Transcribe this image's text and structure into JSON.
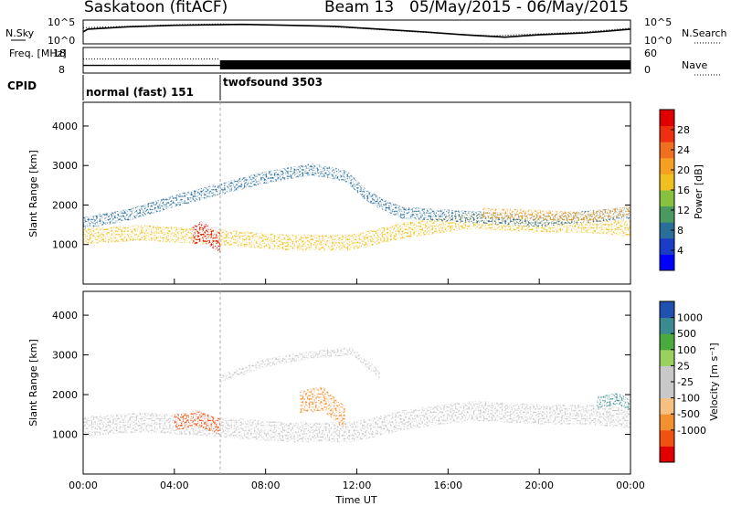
{
  "header": {
    "station": "Saskatoon (fitACF)",
    "beam_label": "Beam 13",
    "date_range": "05/May/2015 - 06/May/2015"
  },
  "colors": {
    "power_scale": [
      "#0000ff",
      "#1a3cc8",
      "#2a6f9a",
      "#4a9a60",
      "#88c040",
      "#f0c020",
      "#f5a020",
      "#f07020",
      "#ee3010",
      "#e00000"
    ],
    "velocity_scale": [
      "#e00000",
      "#f25010",
      "#f59030",
      "#f5c080",
      "#c8c8c8",
      "#c8c8c8",
      "#9ad060",
      "#4aaa40",
      "#3a8a90",
      "#2050b0"
    ]
  },
  "chart_data": [
    {
      "type": "line",
      "name": "noise-panel",
      "left_label": "N.Sky",
      "right_label": "N.Search",
      "yticks_left": [
        "10^5",
        "10^0"
      ],
      "yticks_right": [
        "10^5",
        "10^0"
      ],
      "series": [
        {
          "name": "N.Sky",
          "style": "solid",
          "x_hours": [
            0,
            0.2,
            2,
            4,
            5.5,
            7,
            9,
            11,
            13,
            15,
            17,
            18.5,
            20,
            22,
            22.8,
            24
          ],
          "y_frac": [
            0.5,
            0.62,
            0.72,
            0.78,
            0.8,
            0.82,
            0.78,
            0.74,
            0.62,
            0.5,
            0.36,
            0.28,
            0.38,
            0.46,
            0.52,
            0.62
          ]
        },
        {
          "name": "N.Search",
          "style": "dotted",
          "x_hours": [
            0,
            2,
            4,
            6,
            8,
            10,
            12,
            14,
            16,
            18,
            20,
            22,
            24
          ],
          "y_frac": [
            0.68,
            0.74,
            0.8,
            0.84,
            0.8,
            0.76,
            0.66,
            0.54,
            0.42,
            0.34,
            0.42,
            0.5,
            0.66
          ]
        }
      ]
    },
    {
      "type": "line",
      "name": "freq-nave-panel",
      "left_label": "Freq. [MHz]",
      "right_label": "Nave",
      "yticks_left": [
        "18",
        "8"
      ],
      "yticks_right": [
        "60",
        "0"
      ],
      "series": [
        {
          "name": "Freq.",
          "style": "solid",
          "x_hours": [
            0,
            6,
            6,
            24
          ],
          "y_frac": [
            0.3,
            0.3,
            0.3,
            0.3
          ]
        },
        {
          "name": "Nave",
          "style": "dotted",
          "x_hours": [
            0,
            6
          ],
          "y_frac": [
            0.55,
            0.55
          ]
        }
      ],
      "twofsound_band": {
        "x_start_hours": 6,
        "x_end_hours": 24
      }
    },
    {
      "type": "table",
      "name": "cpid-strip",
      "label": "CPID",
      "segments": [
        {
          "start_hours": 0,
          "text": "normal (fast) 151"
        },
        {
          "start_hours": 6,
          "text": "twofsound 3503"
        }
      ]
    },
    {
      "type": "heatmap",
      "name": "power-panel",
      "ylabel": "Slant Range [km]",
      "ylim": [
        0,
        4600
      ],
      "xlim_hours": [
        0,
        24
      ],
      "yticks": [
        1000,
        2000,
        3000,
        4000
      ],
      "colorbar": {
        "label": "Power [dB]",
        "ticks": [
          4,
          8,
          12,
          16,
          20,
          24,
          28
        ],
        "range": [
          0,
          32
        ]
      },
      "echo_bands": [
        {
          "x": [
            0,
            2.5,
            5.5,
            9,
            11.8,
            14,
            17,
            20,
            22,
            24
          ],
          "y_center": [
            1200,
            1300,
            1200,
            1050,
            1050,
            1350,
            1600,
            1500,
            1500,
            1400
          ],
          "width": 400,
          "power_db": 18
        },
        {
          "x": [
            0,
            2,
            4,
            6,
            8,
            10,
            11.5,
            12.5,
            14,
            17,
            20,
            22,
            24
          ],
          "y_center": [
            1550,
            1750,
            2100,
            2400,
            2700,
            2900,
            2750,
            2200,
            1800,
            1700,
            1600,
            1700,
            1800
          ],
          "width": 300,
          "power_db": 9
        },
        {
          "x": [
            4.8,
            5.2,
            5.7,
            6.0
          ],
          "y_center": [
            1200,
            1350,
            1150,
            1050
          ],
          "width": 500,
          "power_db": 29
        },
        {
          "x": [
            17.5,
            20,
            22,
            24
          ],
          "y_center": [
            1800,
            1750,
            1700,
            1850
          ],
          "width": 250,
          "power_db": 20
        }
      ]
    },
    {
      "type": "heatmap",
      "name": "velocity-panel",
      "ylabel": "Slant Range [km]",
      "xlabel": "Time UT",
      "ylim": [
        0,
        4600
      ],
      "xlim_hours": [
        0,
        24
      ],
      "yticks": [
        1000,
        2000,
        3000,
        4000
      ],
      "xticks": [
        "00:00",
        "04:00",
        "08:00",
        "12:00",
        "16:00",
        "20:00",
        "00:00"
      ],
      "colorbar": {
        "label": "Velocity [m s⁻¹]",
        "ticks": [
          1000,
          500,
          100,
          25,
          -25,
          -100,
          -500,
          -1000
        ]
      },
      "echo_bands": [
        {
          "x": [
            0,
            2.5,
            5.5,
            9,
            11.8,
            14,
            17,
            20,
            22,
            24
          ],
          "y_center": [
            1200,
            1300,
            1200,
            1050,
            1050,
            1350,
            1600,
            1500,
            1500,
            1400
          ],
          "width": 500,
          "velocity": 0
        },
        {
          "x": [
            4,
            5,
            6
          ],
          "y_center": [
            1300,
            1400,
            1200
          ],
          "width": 400,
          "velocity": -300
        },
        {
          "x": [
            9.5,
            10.5,
            11.5
          ],
          "y_center": [
            1800,
            1900,
            1400
          ],
          "width": 600,
          "velocity": -200
        },
        {
          "x": [
            6,
            8,
            10,
            11.8,
            13
          ],
          "y_center": [
            2400,
            2800,
            3000,
            3100,
            2500
          ],
          "width": 200,
          "velocity": 0
        },
        {
          "x": [
            22.5,
            23.5,
            24
          ],
          "y_center": [
            1800,
            1900,
            1700
          ],
          "width": 300,
          "velocity": 500
        }
      ]
    }
  ]
}
